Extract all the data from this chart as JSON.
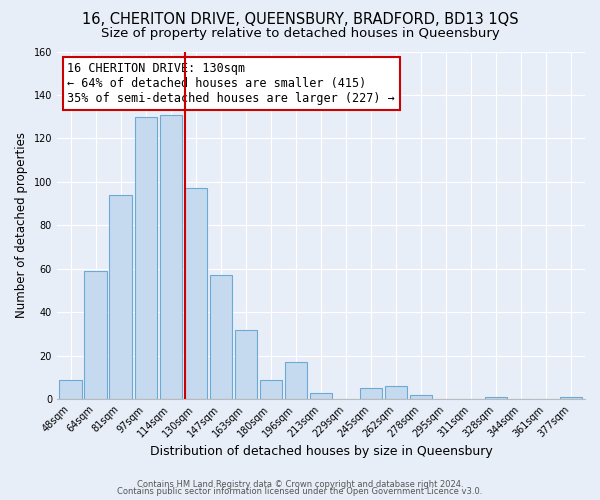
{
  "title": "16, CHERITON DRIVE, QUEENSBURY, BRADFORD, BD13 1QS",
  "subtitle": "Size of property relative to detached houses in Queensbury",
  "xlabel": "Distribution of detached houses by size in Queensbury",
  "ylabel": "Number of detached properties",
  "bar_labels": [
    "48sqm",
    "64sqm",
    "81sqm",
    "97sqm",
    "114sqm",
    "130sqm",
    "147sqm",
    "163sqm",
    "180sqm",
    "196sqm",
    "213sqm",
    "229sqm",
    "245sqm",
    "262sqm",
    "278sqm",
    "295sqm",
    "311sqm",
    "328sqm",
    "344sqm",
    "361sqm",
    "377sqm"
  ],
  "bar_values": [
    9,
    59,
    94,
    130,
    131,
    97,
    57,
    32,
    9,
    17,
    3,
    0,
    5,
    6,
    2,
    0,
    0,
    1,
    0,
    0,
    1
  ],
  "bar_color": "#c5d9ef",
  "bar_edge_color": "#6aaad4",
  "marker_index": 5,
  "marker_color": "#cc0000",
  "annotation_text": "16 CHERITON DRIVE: 130sqm\n← 64% of detached houses are smaller (415)\n35% of semi-detached houses are larger (227) →",
  "annotation_box_color": "#ffffff",
  "annotation_box_edge": "#cc0000",
  "ylim": [
    0,
    160
  ],
  "yticks": [
    0,
    20,
    40,
    60,
    80,
    100,
    120,
    140,
    160
  ],
  "footer1": "Contains HM Land Registry data © Crown copyright and database right 2024.",
  "footer2": "Contains public sector information licensed under the Open Government Licence v3.0.",
  "bg_color": "#e8eef8",
  "title_fontsize": 10.5,
  "subtitle_fontsize": 9.5,
  "xlabel_fontsize": 9,
  "ylabel_fontsize": 8.5,
  "tick_fontsize": 7,
  "annotation_fontsize": 8.5,
  "footer_fontsize": 6
}
